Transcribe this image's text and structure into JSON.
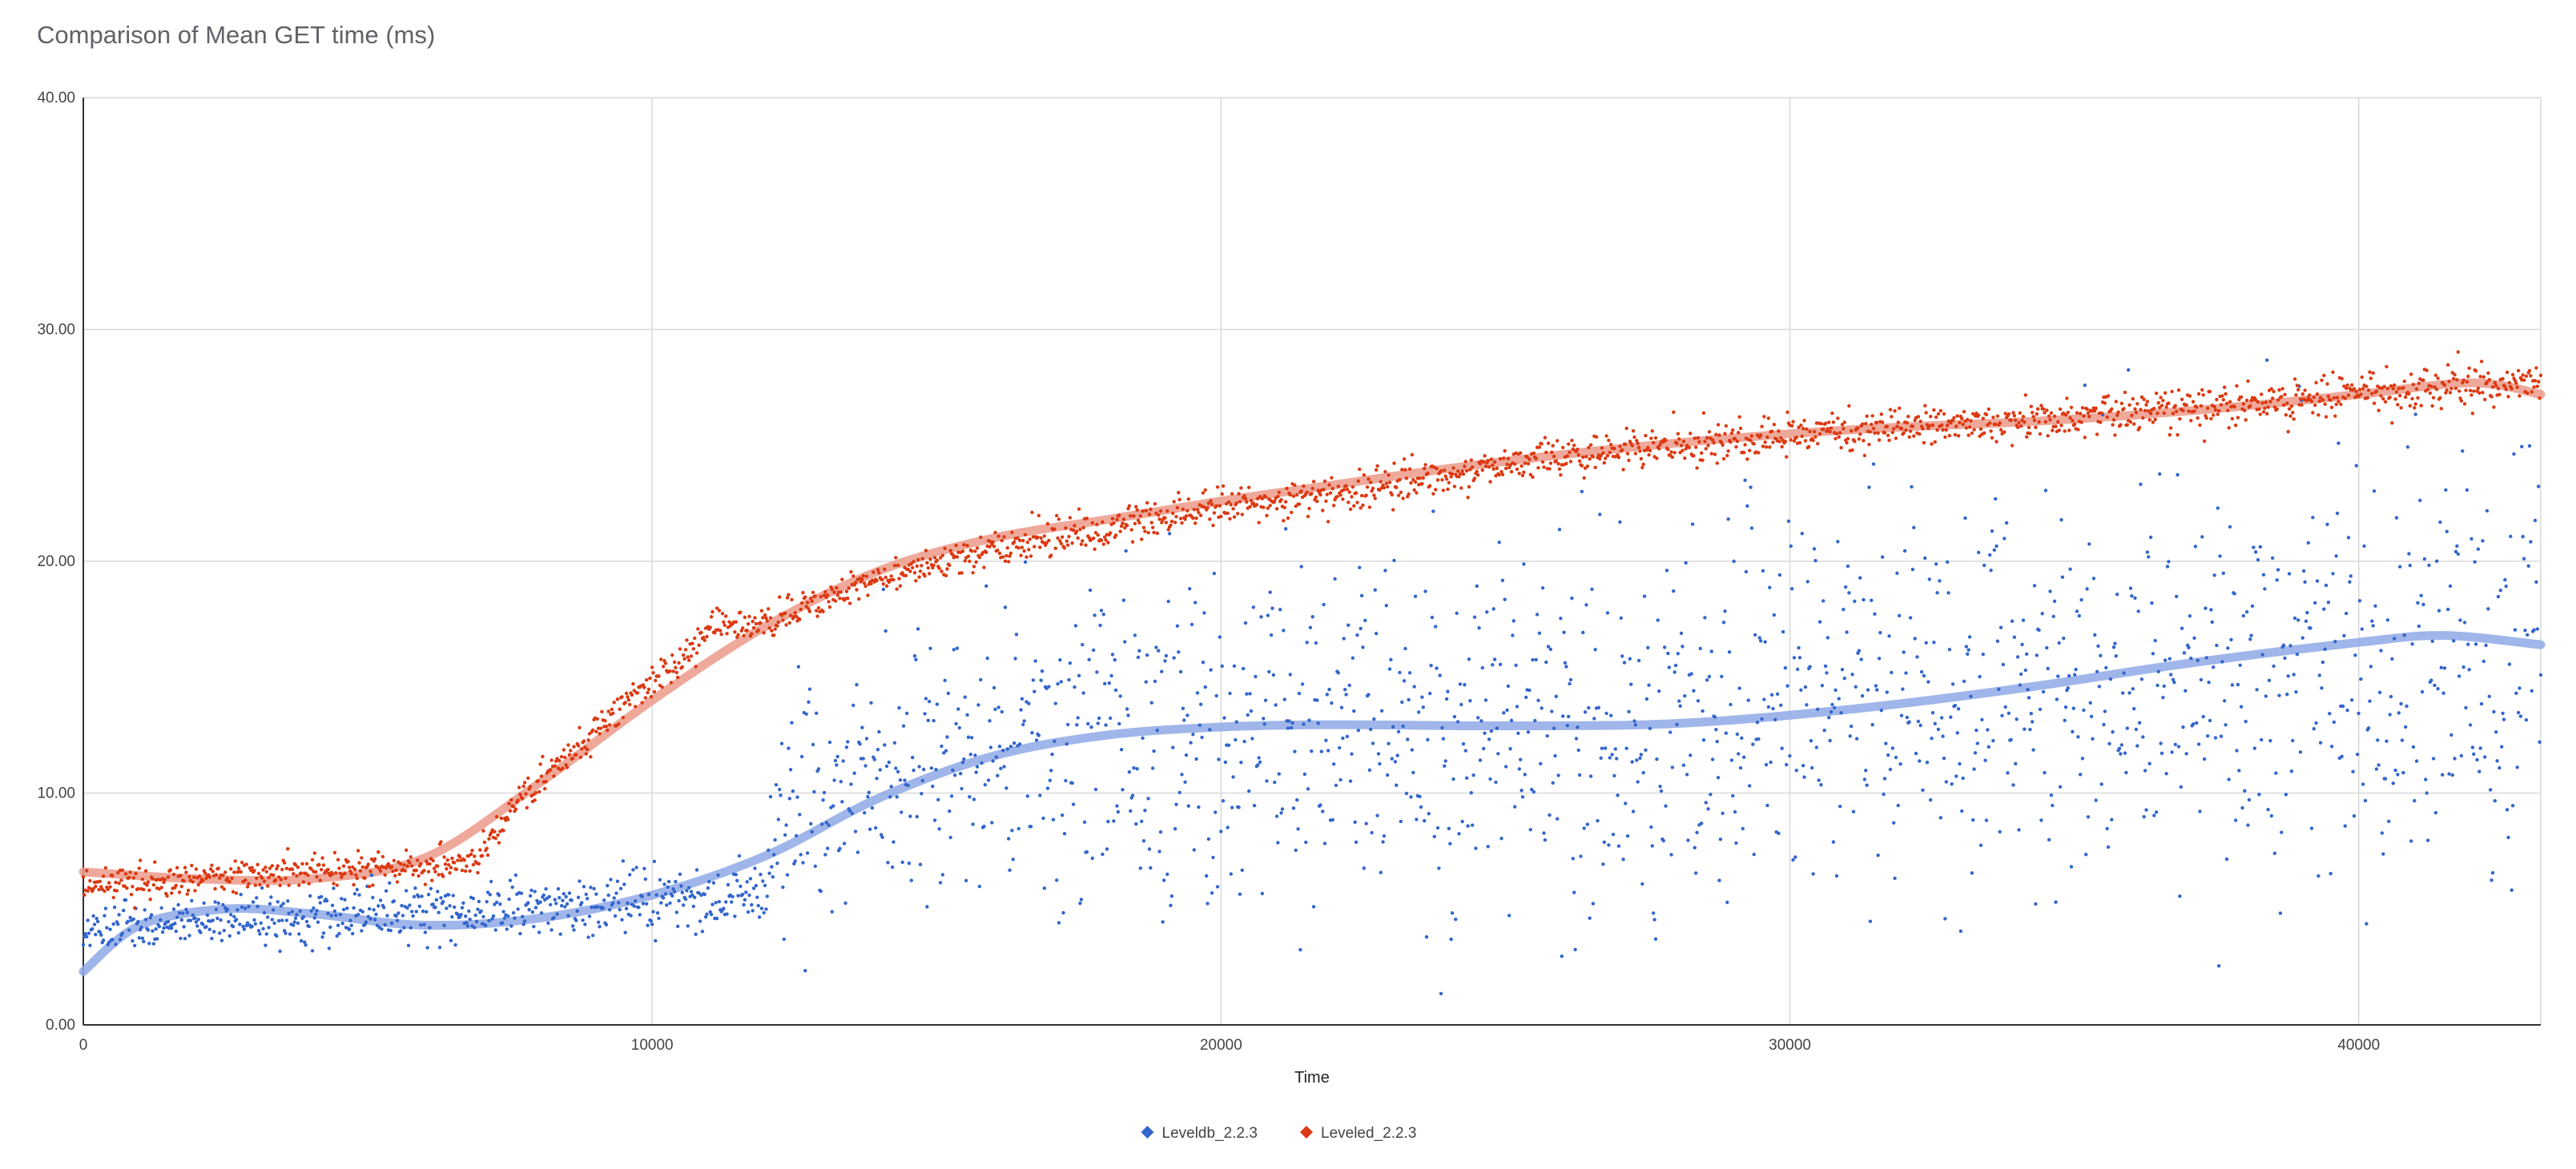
{
  "chart_data": {
    "type": "scatter",
    "title": "Comparison of Mean GET time (ms)",
    "xlabel": "Time",
    "ylabel": "",
    "xlim": [
      0,
      43200
    ],
    "ylim": [
      0,
      40
    ],
    "x_ticks": [
      0,
      10000,
      20000,
      30000,
      40000
    ],
    "x_tick_labels": [
      "0",
      "10000",
      "20000",
      "30000",
      "40000"
    ],
    "y_ticks": [
      0,
      10,
      20,
      30,
      40
    ],
    "y_tick_labels": [
      "0.00",
      "10.00",
      "20.00",
      "30.00",
      "40.00"
    ],
    "grid": true,
    "legend_position": "bottom",
    "series": [
      {
        "name": "Leveldb_2.2.3",
        "color": "#3366cc",
        "marker": "point",
        "profile": [
          [
            0,
            4.0
          ],
          [
            3000,
            4.6
          ],
          [
            6000,
            4.8
          ],
          [
            9000,
            5.2
          ],
          [
            12000,
            5.5
          ],
          [
            12200,
            8.5
          ],
          [
            14000,
            10.5
          ],
          [
            17000,
            12.5
          ],
          [
            20000,
            12.5
          ],
          [
            25000,
            12.5
          ],
          [
            30000,
            13.5
          ],
          [
            35000,
            14.5
          ],
          [
            40000,
            15.5
          ],
          [
            43200,
            15.5
          ]
        ],
        "spread": [
          [
            0,
            0.5
          ],
          [
            12000,
            0.7
          ],
          [
            12300,
            2.5
          ],
          [
            15000,
            3.0
          ],
          [
            20000,
            3.8
          ],
          [
            30000,
            4.0
          ],
          [
            43200,
            4.5
          ]
        ],
        "trendline": [
          [
            0,
            2.3
          ],
          [
            1000,
            4.3
          ],
          [
            2500,
            5.0
          ],
          [
            4000,
            4.8
          ],
          [
            6000,
            4.3
          ],
          [
            8000,
            4.6
          ],
          [
            10000,
            5.6
          ],
          [
            12000,
            7.3
          ],
          [
            14000,
            9.8
          ],
          [
            16000,
            11.6
          ],
          [
            18000,
            12.5
          ],
          [
            20000,
            12.85
          ],
          [
            22000,
            12.95
          ],
          [
            25000,
            12.9
          ],
          [
            28000,
            13.0
          ],
          [
            31000,
            13.6
          ],
          [
            34000,
            14.5
          ],
          [
            37000,
            15.6
          ],
          [
            40000,
            16.5
          ],
          [
            41500,
            16.8
          ],
          [
            43200,
            16.4
          ]
        ]
      },
      {
        "name": "Leveled_2.2.3",
        "color": "#dc3912",
        "marker": "point",
        "profile": [
          [
            0,
            6.0
          ],
          [
            3000,
            6.5
          ],
          [
            6800,
            7.0
          ],
          [
            8000,
            10.5
          ],
          [
            10000,
            14.8
          ],
          [
            11000,
            17.0
          ],
          [
            12000,
            17.3
          ],
          [
            14000,
            19.3
          ],
          [
            16000,
            20.5
          ],
          [
            18000,
            21.5
          ],
          [
            20000,
            22.3
          ],
          [
            22000,
            22.8
          ],
          [
            24000,
            23.8
          ],
          [
            26000,
            24.5
          ],
          [
            28000,
            25.0
          ],
          [
            30000,
            25.4
          ],
          [
            32000,
            25.8
          ],
          [
            34000,
            26.0
          ],
          [
            36000,
            26.5
          ],
          [
            38000,
            26.8
          ],
          [
            40000,
            27.2
          ],
          [
            43200,
            27.8
          ]
        ],
        "spread": [
          [
            0,
            0.35
          ],
          [
            43200,
            0.45
          ]
        ],
        "trendline": [
          [
            0,
            6.6
          ],
          [
            2000,
            6.3
          ],
          [
            4000,
            6.3
          ],
          [
            6000,
            7.2
          ],
          [
            8000,
            10.4
          ],
          [
            10000,
            14.0
          ],
          [
            12000,
            17.2
          ],
          [
            14000,
            19.6
          ],
          [
            16000,
            21.0
          ],
          [
            18000,
            21.8
          ],
          [
            20000,
            22.6
          ],
          [
            22000,
            23.3
          ],
          [
            24000,
            24.0
          ],
          [
            26000,
            24.6
          ],
          [
            28000,
            25.1
          ],
          [
            30000,
            25.5
          ],
          [
            32000,
            25.8
          ],
          [
            34000,
            26.0
          ],
          [
            36000,
            26.3
          ],
          [
            38000,
            26.7
          ],
          [
            40000,
            27.2
          ],
          [
            42000,
            27.7
          ],
          [
            43200,
            27.2
          ]
        ]
      }
    ]
  }
}
